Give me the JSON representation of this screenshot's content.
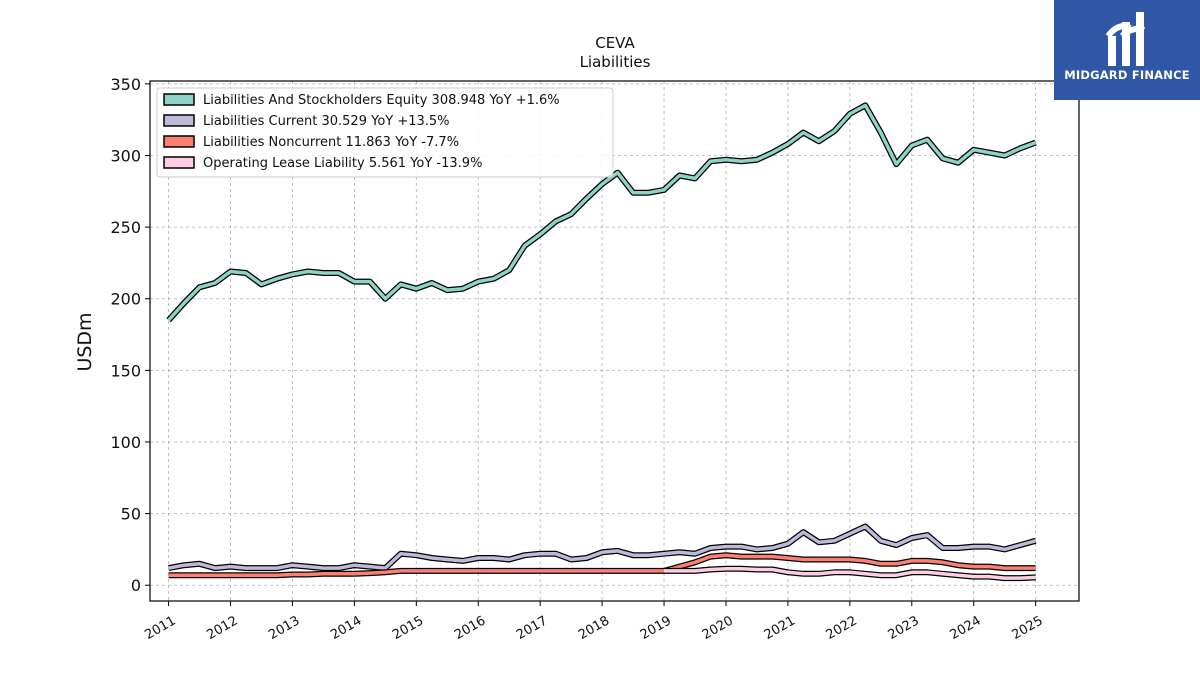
{
  "chart_data": {
    "type": "line",
    "title": "CEVA",
    "subtitle": "Liabilities",
    "ylabel": "USDm",
    "xlabel": "",
    "xlim": [
      2010.7,
      2025.7
    ],
    "ylim": [
      -11,
      352
    ],
    "yticks": [
      0,
      50,
      100,
      150,
      200,
      250,
      300,
      350
    ],
    "xticks": [
      "2011",
      "2012",
      "2013",
      "2014",
      "2015",
      "2016",
      "2017",
      "2018",
      "2019",
      "2020",
      "2021",
      "2022",
      "2023",
      "2024",
      "2025"
    ],
    "grid": true,
    "legend_position": "top-left",
    "x": [
      2011.0,
      2011.25,
      2011.5,
      2011.75,
      2012.0,
      2012.25,
      2012.5,
      2012.75,
      2013.0,
      2013.25,
      2013.5,
      2013.75,
      2014.0,
      2014.25,
      2014.5,
      2014.75,
      2015.0,
      2015.25,
      2015.5,
      2015.75,
      2016.0,
      2016.25,
      2016.5,
      2016.75,
      2017.0,
      2017.25,
      2017.5,
      2017.75,
      2018.0,
      2018.25,
      2018.5,
      2018.75,
      2019.0,
      2019.25,
      2019.5,
      2019.75,
      2020.0,
      2020.25,
      2020.5,
      2020.75,
      2021.0,
      2021.25,
      2021.5,
      2021.75,
      2022.0,
      2022.25,
      2022.5,
      2022.75,
      2023.0,
      2023.25,
      2023.5,
      2023.75,
      2024.0,
      2024.25,
      2024.5,
      2024.75,
      2025.0
    ],
    "series": [
      {
        "name": "Liabilities And Stockholders Equity",
        "legend": "Liabilities And Stockholders Equity  308.948 YoY +1.6%",
        "color": "#8dd3c7",
        "values": [
          185,
          197,
          208,
          211,
          219,
          218,
          210,
          214,
          217,
          219,
          218,
          218,
          212,
          212,
          200,
          210,
          207,
          211,
          206,
          207,
          212,
          214,
          220,
          237,
          245,
          254,
          259,
          270,
          280,
          288,
          274,
          274,
          276,
          286,
          284,
          296,
          297,
          296,
          297,
          302,
          308,
          316,
          310,
          317,
          329,
          335,
          316,
          294,
          307,
          311,
          298,
          295,
          304,
          302,
          300,
          305,
          309
        ]
      },
      {
        "name": "Liabilities Current",
        "legend": "Liabilities Current  30.529 YoY +13.5%",
        "color": "#bebada",
        "values": [
          12,
          14,
          15,
          12,
          13,
          12,
          12,
          12,
          14,
          13,
          12,
          12,
          14,
          13,
          12,
          22,
          21,
          19,
          18,
          17,
          19,
          19,
          18,
          21,
          22,
          22,
          18,
          19,
          23,
          24,
          21,
          21,
          22,
          23,
          22,
          26,
          27,
          27,
          25,
          26,
          29,
          37,
          30,
          31,
          36,
          41,
          31,
          28,
          33,
          35,
          26,
          26,
          27,
          27,
          25,
          28,
          31
        ]
      },
      {
        "name": "Liabilities Noncurrent",
        "legend": "Liabilities Noncurrent  11.863 YoY -7.7%",
        "color": "#fb8072",
        "values": [
          7,
          7,
          7,
          7,
          7,
          7,
          7,
          7,
          7.5,
          7.5,
          8,
          8,
          8,
          8.5,
          9,
          10,
          10,
          10,
          10,
          10,
          10,
          10,
          10,
          10,
          10,
          10,
          10,
          10,
          10,
          10,
          10,
          10,
          10,
          13,
          16,
          20,
          21,
          20,
          20,
          20,
          19,
          18,
          18,
          18,
          18,
          17,
          15,
          15,
          17,
          17,
          16,
          14,
          13,
          13,
          12,
          12,
          12
        ]
      },
      {
        "name": "Operating Lease Liability",
        "legend": "Operating Lease Liability  5.561 YoY -13.9%",
        "color": "#fccde5",
        "start_index": 32,
        "values": [
          null,
          null,
          null,
          null,
          null,
          null,
          null,
          null,
          null,
          null,
          null,
          null,
          null,
          null,
          null,
          null,
          null,
          null,
          null,
          null,
          null,
          null,
          null,
          null,
          null,
          null,
          null,
          null,
          null,
          null,
          null,
          null,
          10,
          10,
          10,
          11,
          11.5,
          11.5,
          11,
          11,
          9,
          8,
          8,
          9,
          9,
          8,
          7,
          7,
          9,
          9,
          8,
          7,
          6,
          6,
          5,
          5,
          5.5
        ]
      }
    ]
  },
  "branding": {
    "logo_text": "MIDGARD FINANCE",
    "logo_color": "#2f57a6"
  }
}
